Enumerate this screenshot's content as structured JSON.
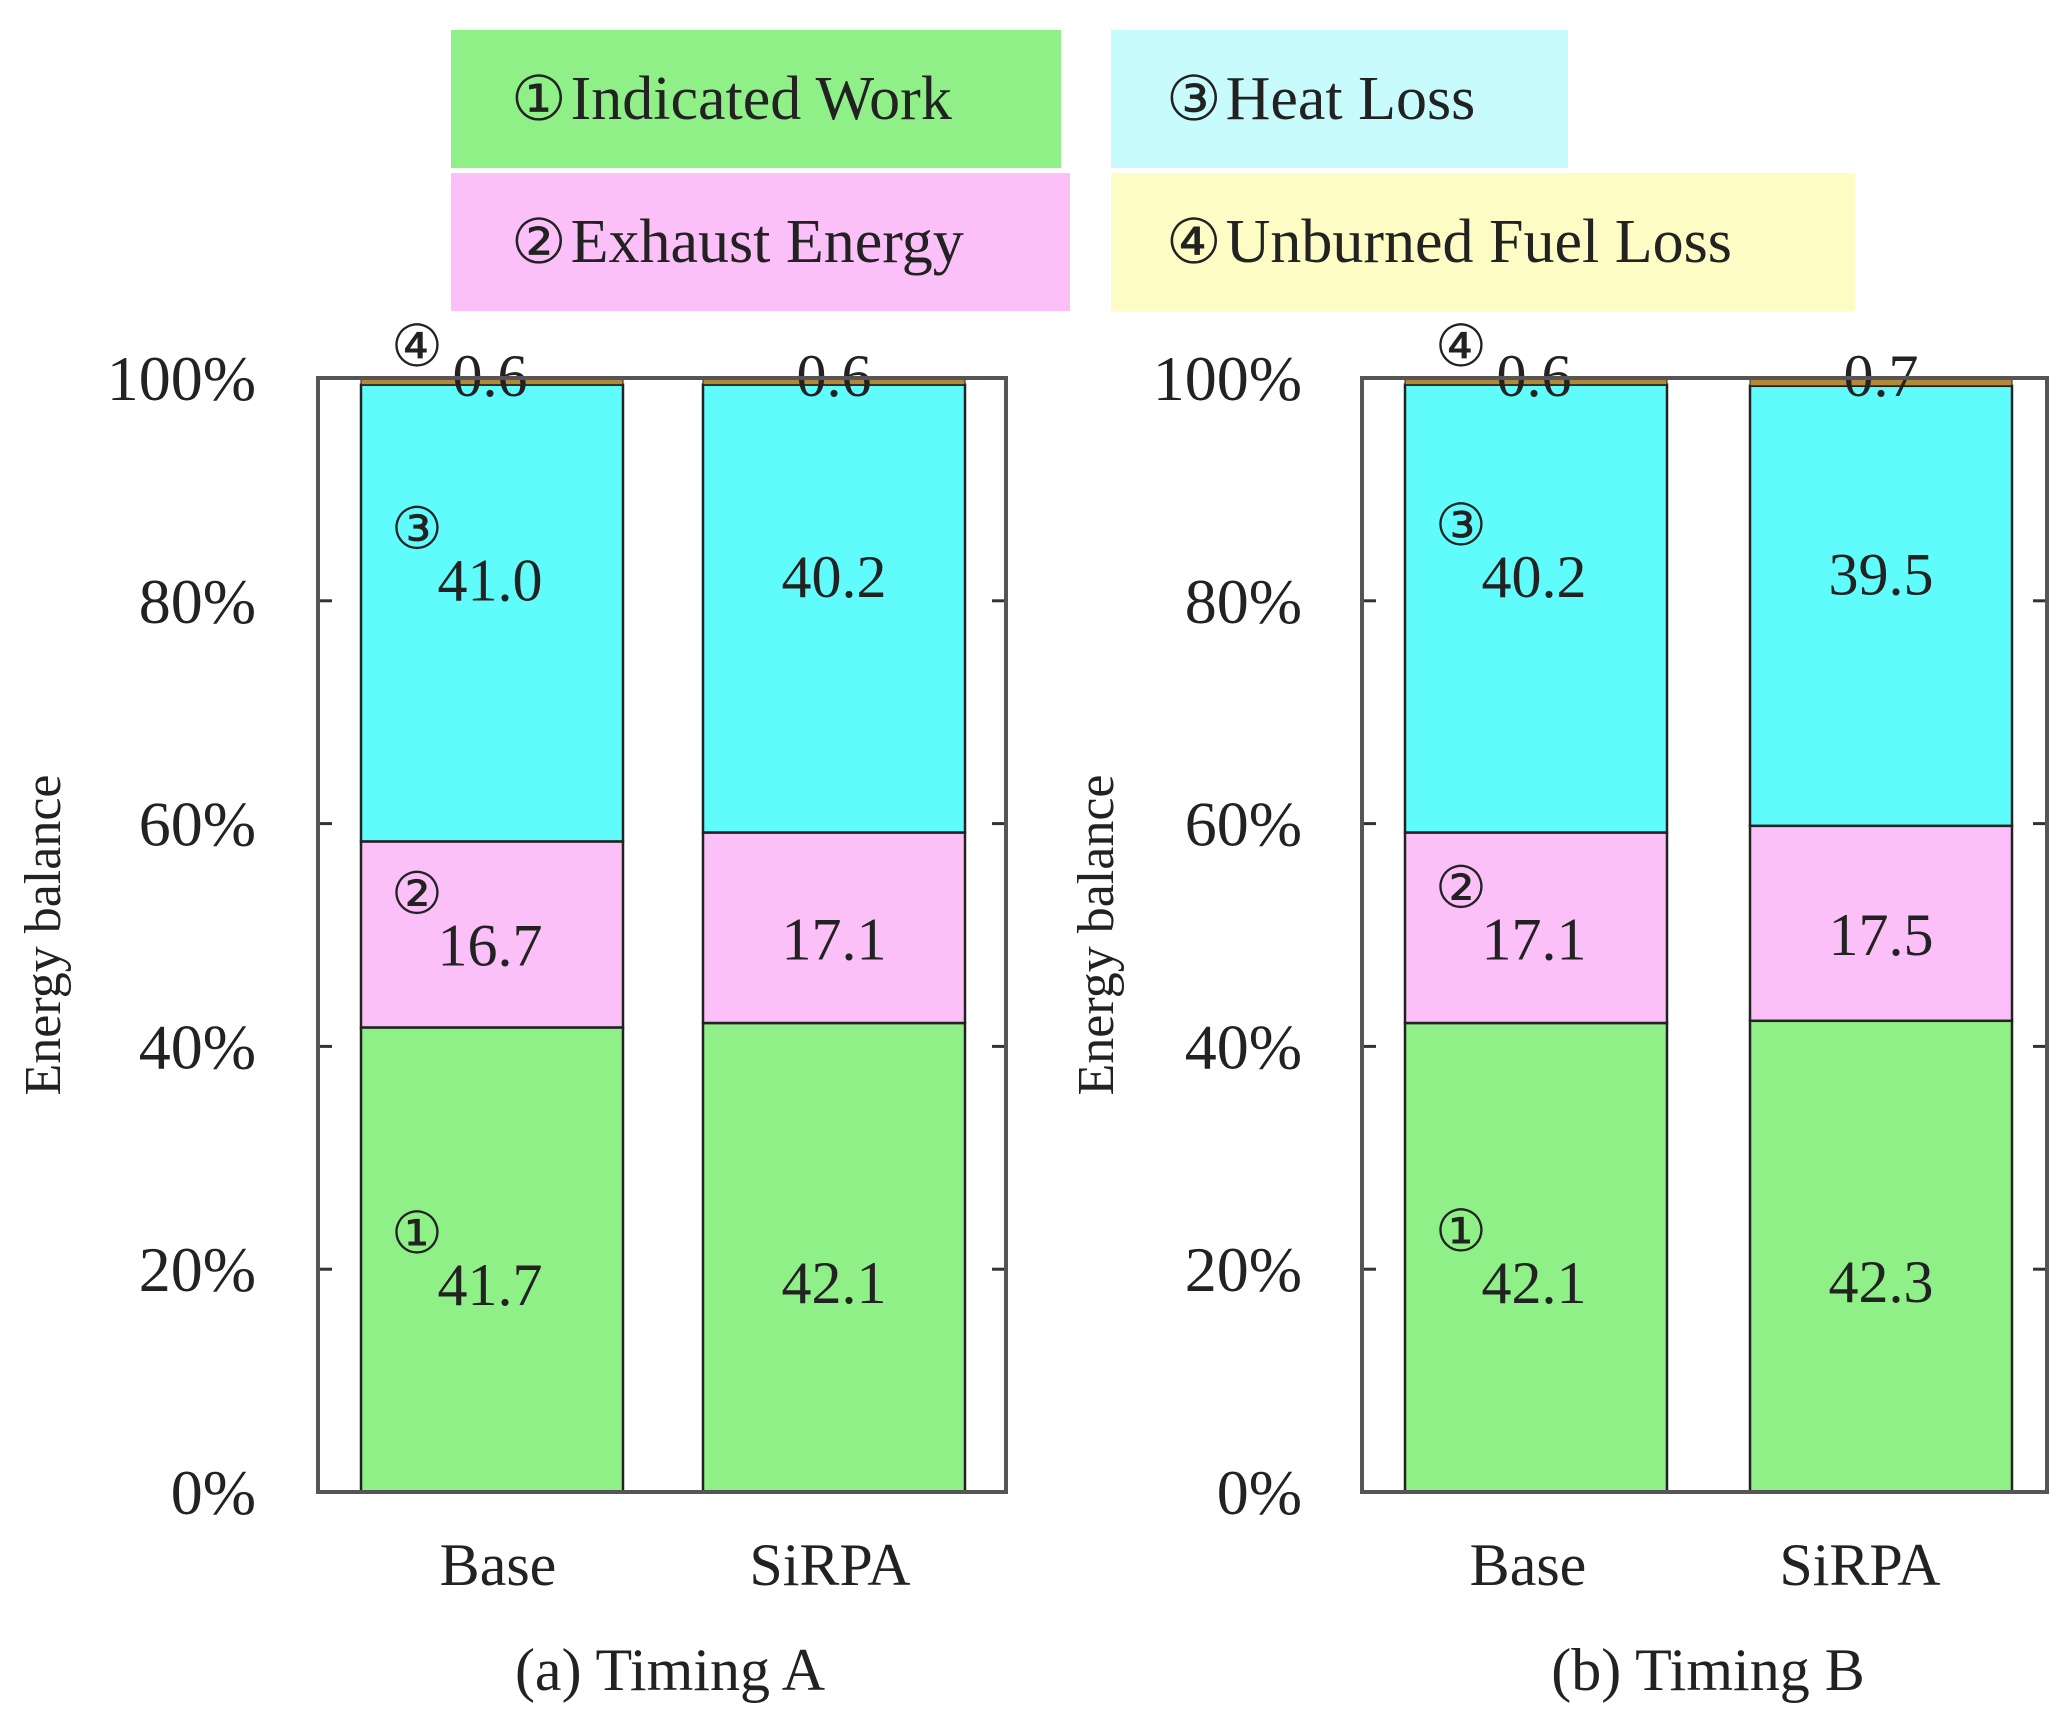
{
  "legend": [
    {
      "marker": "①",
      "label": "Indicated Work",
      "color": "#90f088"
    },
    {
      "marker": "②",
      "label": "Exhaust Energy",
      "color": "#fcc0f8"
    },
    {
      "marker": "③",
      "label": "Heat Loss",
      "color": "#c8fcfc"
    },
    {
      "marker": "④",
      "label": "Unburned Fuel Loss",
      "color": "#fcfcc4"
    }
  ],
  "colors": {
    "indicated_work": "#90f088",
    "exhaust_energy": "#fcc0f8",
    "heat_loss": "#60fcfc",
    "unburned_fuel_loss": "#b08a3a"
  },
  "chart_data": [
    {
      "type": "bar",
      "stacked": true,
      "title": "(a) Timing A",
      "ylabel": "Energy balance",
      "ylim": [
        0,
        100
      ],
      "yticks": [
        "0%",
        "20%",
        "40%",
        "60%",
        "80%",
        "100%"
      ],
      "categories": [
        "Base",
        "SiRPA"
      ],
      "series": [
        {
          "name": "Indicated Work",
          "marker": "①",
          "values": [
            41.7,
            42.1
          ]
        },
        {
          "name": "Exhaust Energy",
          "marker": "②",
          "values": [
            16.7,
            17.1
          ]
        },
        {
          "name": "Heat Loss",
          "marker": "③",
          "values": [
            41.0,
            40.2
          ]
        },
        {
          "name": "Unburned Fuel Loss",
          "marker": "④",
          "values": [
            0.6,
            0.6
          ]
        }
      ],
      "value_labels": [
        [
          "41.7",
          "16.7",
          "41.0",
          "0.6"
        ],
        [
          "42.1",
          "17.1",
          "40.2",
          "0.6"
        ]
      ]
    },
    {
      "type": "bar",
      "stacked": true,
      "title": "(b) Timing B",
      "ylabel": "Energy balance",
      "ylim": [
        0,
        100
      ],
      "yticks": [
        "0%",
        "20%",
        "40%",
        "60%",
        "80%",
        "100%"
      ],
      "categories": [
        "Base",
        "SiRPA"
      ],
      "series": [
        {
          "name": "Indicated Work",
          "marker": "①",
          "values": [
            42.1,
            42.3
          ]
        },
        {
          "name": "Exhaust Energy",
          "marker": "②",
          "values": [
            17.1,
            17.5
          ]
        },
        {
          "name": "Heat Loss",
          "marker": "③",
          "values": [
            40.2,
            39.5
          ]
        },
        {
          "name": "Unburned Fuel Loss",
          "marker": "④",
          "values": [
            0.6,
            0.7
          ]
        }
      ],
      "value_labels": [
        [
          "42.1",
          "17.1",
          "40.2",
          "0.6"
        ],
        [
          "42.3",
          "17.5",
          "39.5",
          "0.7"
        ]
      ]
    }
  ]
}
